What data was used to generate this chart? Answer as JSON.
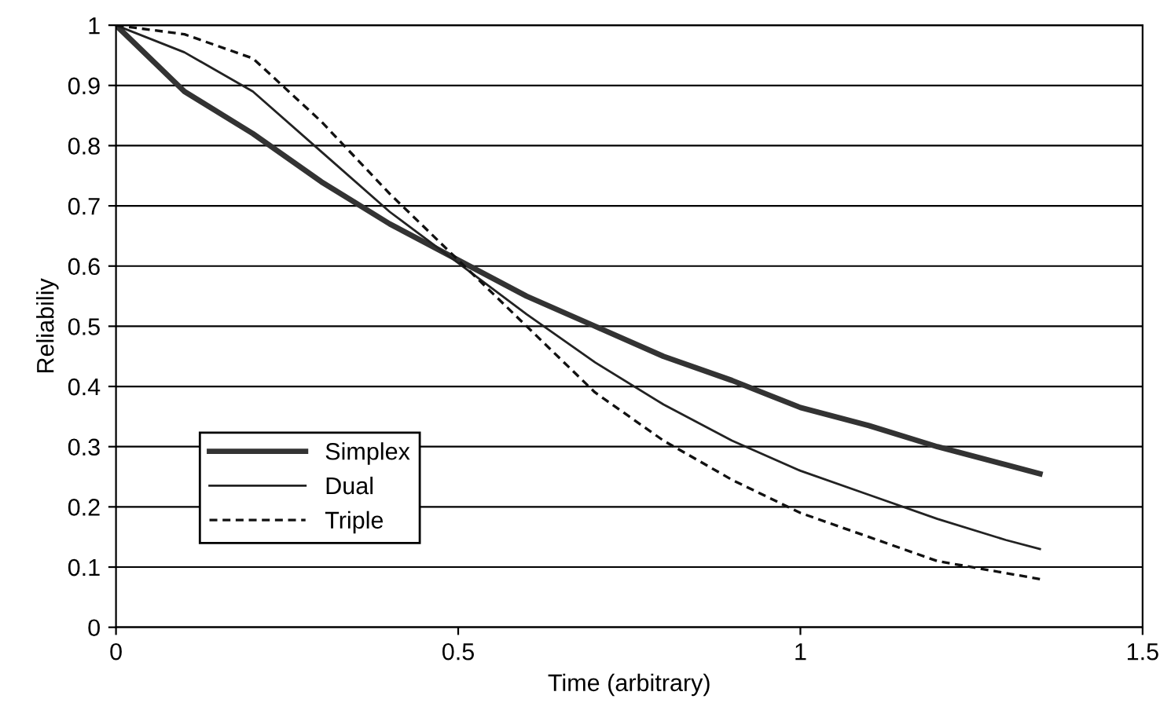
{
  "chart_data": {
    "type": "line",
    "xlabel": "Time (arbitrary)",
    "ylabel": "Reliabiliy",
    "x": [
      0,
      0.1,
      0.2,
      0.3,
      0.4,
      0.5,
      0.6,
      0.7,
      0.8,
      0.9,
      1.0,
      1.1,
      1.2,
      1.3,
      1.35
    ],
    "series": [
      {
        "name": "Simplex",
        "color": "#333333",
        "line_style": "solid",
        "values": [
          1,
          0.89,
          0.82,
          0.74,
          0.67,
          0.61,
          0.55,
          0.5,
          0.45,
          0.41,
          0.365,
          0.335,
          0.3,
          0.27,
          0.255
        ]
      },
      {
        "name": "Dual",
        "color": "#222222",
        "line_style": "solid",
        "values": [
          1,
          0.955,
          0.89,
          0.79,
          0.69,
          0.605,
          0.52,
          0.44,
          0.37,
          0.31,
          0.26,
          0.22,
          0.18,
          0.145,
          0.13
        ]
      },
      {
        "name": "Triple",
        "color": "#111111",
        "line_style": "dashed",
        "values": [
          1,
          0.985,
          0.945,
          0.84,
          0.72,
          0.61,
          0.5,
          0.39,
          0.31,
          0.245,
          0.19,
          0.15,
          0.11,
          0.09,
          0.08
        ]
      }
    ],
    "xlim": [
      0,
      1.5
    ],
    "xticks": [
      0,
      0.5,
      1,
      1.5
    ],
    "ylim": [
      0,
      1
    ],
    "yticks": [
      0,
      0.1,
      0.2,
      0.3,
      0.4,
      0.5,
      0.6,
      0.7,
      0.8,
      0.9,
      1
    ],
    "grid": "y",
    "legend": "bottom left",
    "marker": "none"
  }
}
